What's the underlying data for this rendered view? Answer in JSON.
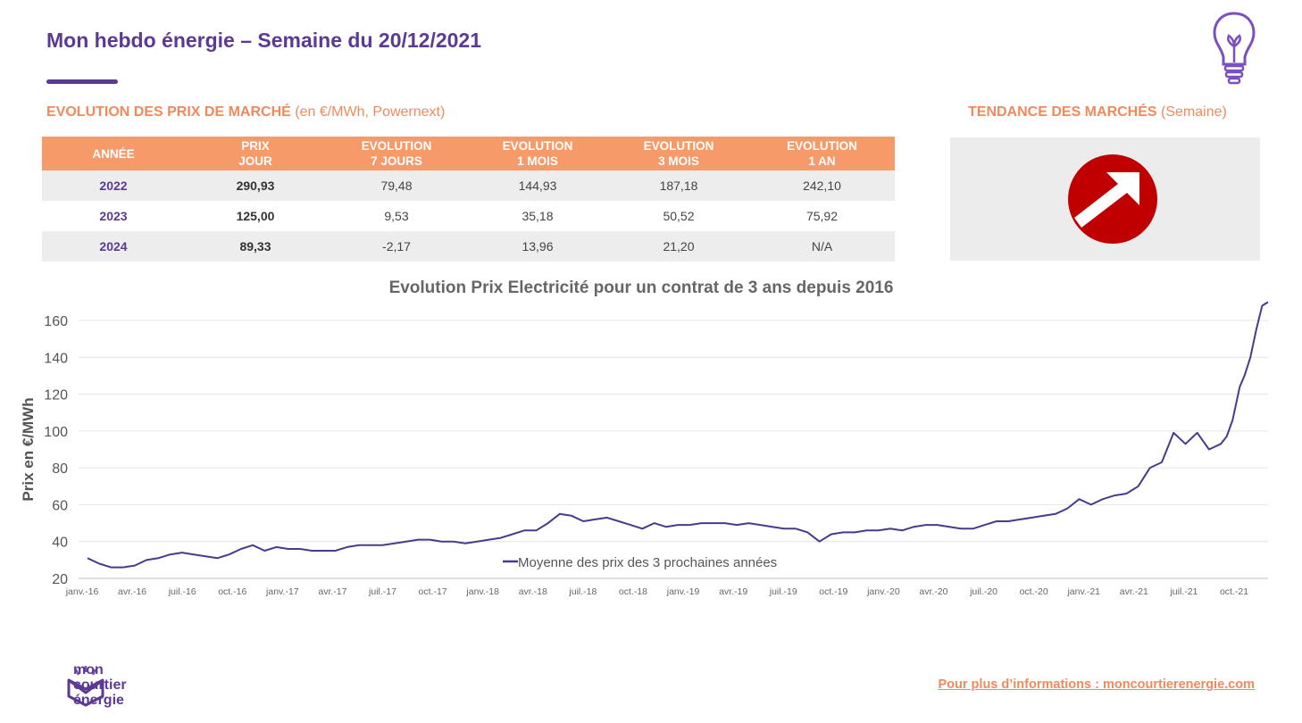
{
  "header": {
    "title": "Mon hebdo énergie – Semaine du 20/12/2021"
  },
  "market_section": {
    "title_bold": "EVOLUTION DES PRIX DE MARCHÉ",
    "title_rest": " (en €/MWh, Powernext)"
  },
  "trend_section": {
    "title_bold": "TENDANCE DES MARCHÉS",
    "title_rest": " (Semaine)",
    "trend": "hausse",
    "icon": "arrow-up-right-icon",
    "color": "#c00000"
  },
  "price_table": {
    "headers": [
      {
        "line1": "Année",
        "line2": ""
      },
      {
        "line1": "PRIX",
        "line2": "JOUR"
      },
      {
        "line1": "EVOLUTION",
        "line2": "7 JOURS"
      },
      {
        "line1": "EVOLUTION",
        "line2": "1 MOIS"
      },
      {
        "line1": "EVOLUTION",
        "line2": "3 MOIS"
      },
      {
        "line1": "EVOLUTION",
        "line2": "1 AN"
      }
    ],
    "rows": [
      {
        "year": "2022",
        "prix_jour": "290,93",
        "evo_7j": "79,48",
        "evo_1m": "144,93",
        "evo_3m": "187,18",
        "evo_1a": "242,10"
      },
      {
        "year": "2023",
        "prix_jour": "125,00",
        "evo_7j": "9,53",
        "evo_1m": "35,18",
        "evo_3m": "50,52",
        "evo_1a": "75,92"
      },
      {
        "year": "2024",
        "prix_jour": "89,33",
        "evo_7j": "-2,17",
        "evo_1m": "13,96",
        "evo_3m": "21,20",
        "evo_1a": "N/A"
      }
    ],
    "header_color": "#f79a6a"
  },
  "chart_data": {
    "type": "line",
    "title": "Evolution Prix Electricité pour un contrat de 3 ans depuis 2016",
    "ylabel": "Prix en €/MWh",
    "xlabel": "",
    "ylim": [
      20,
      160
    ],
    "yticks": [
      20,
      40,
      60,
      80,
      100,
      120,
      140,
      160
    ],
    "grid": true,
    "legend": "bottom-center",
    "xticks": [
      "janv.-16",
      "avr.-16",
      "juil.-16",
      "oct.-16",
      "janv.-17",
      "avr.-17",
      "juil.-17",
      "oct.-17",
      "janv.-18",
      "avr.-18",
      "juil.-18",
      "oct.-18",
      "janv.-19",
      "avr.-19",
      "juil.-19",
      "oct.-19",
      "janv.-20",
      "avr.-20",
      "juil.-20",
      "oct.-20",
      "janv.-21",
      "avr.-21",
      "juil.-21",
      "oct.-21"
    ],
    "series": [
      {
        "name": "Moyenne des prix des 3 prochaines années",
        "color": "#4b3a8c",
        "x": [
          0,
          1,
          2,
          3,
          4,
          5,
          6,
          7,
          8,
          9,
          10,
          11,
          12,
          13,
          14,
          15,
          16,
          17,
          18,
          19,
          20,
          21,
          22,
          23,
          24,
          25,
          26,
          27,
          28,
          29,
          30,
          31,
          32,
          33,
          34,
          35,
          36,
          37,
          38,
          39,
          40,
          41,
          42,
          43,
          44,
          45,
          46,
          47,
          48,
          49,
          50,
          51,
          52,
          53,
          54,
          55,
          56,
          57,
          58,
          59,
          60,
          61,
          62,
          63,
          64,
          65,
          66,
          67,
          68,
          69,
          70,
          71,
          72,
          73,
          74,
          75,
          76,
          77,
          78,
          79,
          80,
          81,
          82,
          83,
          84,
          85,
          86,
          87,
          88,
          89,
          90,
          91,
          92,
          93,
          94,
          95,
          96,
          96.5,
          97,
          97.3,
          97.6,
          98,
          98.5,
          99,
          99.5,
          100
        ],
        "values": [
          31,
          28,
          26,
          26,
          27,
          30,
          31,
          33,
          34,
          33,
          32,
          31,
          33,
          36,
          38,
          35,
          37,
          36,
          36,
          35,
          35,
          35,
          37,
          38,
          38,
          38,
          39,
          40,
          41,
          41,
          40,
          40,
          39,
          40,
          41,
          42,
          44,
          46,
          46,
          50,
          55,
          54,
          51,
          52,
          53,
          51,
          49,
          47,
          50,
          48,
          49,
          49,
          50,
          50,
          50,
          49,
          50,
          49,
          48,
          47,
          47,
          45,
          40,
          44,
          45,
          45,
          46,
          46,
          47,
          46,
          48,
          49,
          49,
          48,
          47,
          47,
          49,
          51,
          51,
          52,
          53,
          54,
          55,
          58,
          63,
          60,
          63,
          65,
          66,
          70,
          80,
          83,
          99,
          93,
          99,
          90,
          93,
          97,
          106,
          115,
          124,
          130,
          140,
          155,
          168,
          170
        ]
      }
    ]
  },
  "footer": {
    "logo_line1": "mon",
    "logo_line2": "courtier",
    "logo_line3": "énergie",
    "link": "Pour plus d’informations : moncourtierenergie.com"
  }
}
